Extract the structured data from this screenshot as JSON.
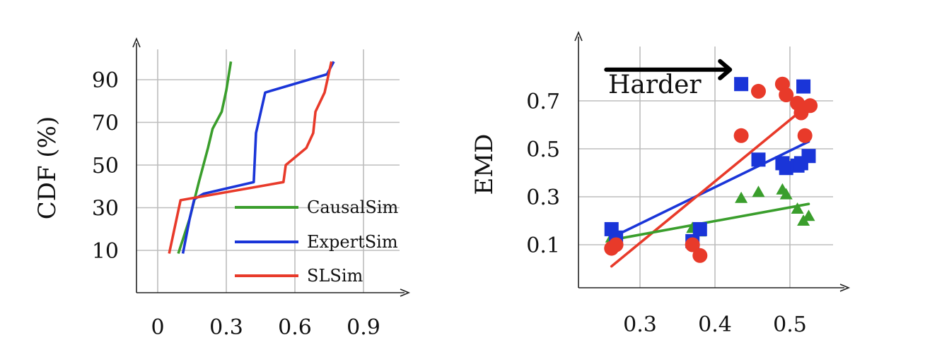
{
  "chart_data": [
    {
      "type": "line",
      "ylabel": "CDF (%)",
      "xlabel": "",
      "xlim": [
        -0.03,
        0.98
      ],
      "ylim": [
        0,
        105
      ],
      "xticks": [
        {
          "v": 0,
          "label": "0"
        },
        {
          "v": 0.3,
          "label": "0.3"
        },
        {
          "v": 0.6,
          "label": "0.6"
        },
        {
          "v": 0.9,
          "label": "0.9"
        }
      ],
      "yticks": [
        {
          "v": 10,
          "label": "10"
        },
        {
          "v": 30,
          "label": "30"
        },
        {
          "v": 50,
          "label": "50"
        },
        {
          "v": 70,
          "label": "70"
        },
        {
          "v": 90,
          "label": "90"
        }
      ],
      "grid": true,
      "legend": "bottom-right",
      "series": [
        {
          "name": "CausalSim",
          "color": "#3a9e2c",
          "points": [
            [
              0.09,
              8.5
            ],
            [
              0.14,
              25
            ],
            [
              0.18,
              42
            ],
            [
              0.22,
              58
            ],
            [
              0.24,
              67
            ],
            [
              0.28,
              75
            ],
            [
              0.3,
              85
            ],
            [
              0.32,
              98.5
            ]
          ]
        },
        {
          "name": "ExpertSim",
          "color": "#1a35d8",
          "points": [
            [
              0.11,
              8.5
            ],
            [
              0.14,
              25
            ],
            [
              0.16,
              34
            ],
            [
              0.2,
              36.5
            ],
            [
              0.42,
              42
            ],
            [
              0.43,
              65
            ],
            [
              0.47,
              84
            ],
            [
              0.74,
              92.5
            ],
            [
              0.77,
              98.5
            ]
          ]
        },
        {
          "name": "SLSim",
          "color": "#e83a2a",
          "points": [
            [
              0.05,
              8.5
            ],
            [
              0.1,
              33.5
            ],
            [
              0.55,
              42
            ],
            [
              0.56,
              50
            ],
            [
              0.65,
              58
            ],
            [
              0.68,
              65
            ],
            [
              0.69,
              75
            ],
            [
              0.73,
              84
            ],
            [
              0.76,
              98.5
            ]
          ]
        }
      ]
    },
    {
      "type": "scatter",
      "ylabel": "EMD",
      "xlabel": "",
      "xlim": [
        0.235,
        0.57
      ],
      "ylim": [
        -0.09,
        0.86
      ],
      "xticks": [
        {
          "v": 0.3,
          "label": "0.3"
        },
        {
          "v": 0.4,
          "label": "0.4"
        },
        {
          "v": 0.5,
          "label": "0.5"
        }
      ],
      "yticks": [
        {
          "v": 0.1,
          "label": "0.1"
        },
        {
          "v": 0.3,
          "label": "0.3"
        },
        {
          "v": 0.5,
          "label": "0.5"
        },
        {
          "v": 0.7,
          "label": "0.7"
        }
      ],
      "grid": true,
      "annotation": {
        "text": "Harder",
        "arrow": "right",
        "from": [
          0.255,
          0.83
        ],
        "to": [
          0.42,
          0.83
        ]
      },
      "series": [
        {
          "name": "ExpertSim",
          "marker": "square",
          "color": "#1a35d8",
          "points": [
            [
              0.262,
              0.165
            ],
            [
              0.268,
              0.13
            ],
            [
              0.37,
              0.115
            ],
            [
              0.38,
              0.165
            ],
            [
              0.435,
              0.77
            ],
            [
              0.458,
              0.455
            ],
            [
              0.49,
              0.44
            ],
            [
              0.495,
              0.42
            ],
            [
              0.51,
              0.43
            ],
            [
              0.515,
              0.44
            ],
            [
              0.518,
              0.76
            ],
            [
              0.525,
              0.47
            ]
          ],
          "trend": [
            [
              0.262,
              0.13
            ],
            [
              0.525,
              0.53
            ]
          ]
        },
        {
          "name": "SLSim",
          "marker": "circle",
          "color": "#e83a2a",
          "points": [
            [
              0.262,
              0.085
            ],
            [
              0.268,
              0.1
            ],
            [
              0.37,
              0.1
            ],
            [
              0.38,
              0.055
            ],
            [
              0.435,
              0.555
            ],
            [
              0.458,
              0.74
            ],
            [
              0.49,
              0.77
            ],
            [
              0.495,
              0.725
            ],
            [
              0.51,
              0.69
            ],
            [
              0.515,
              0.65
            ],
            [
              0.52,
              0.555
            ],
            [
              0.527,
              0.68
            ]
          ],
          "trend": [
            [
              0.262,
              0.01
            ],
            [
              0.527,
              0.69
            ]
          ]
        },
        {
          "name": "CausalSim",
          "marker": "triangle",
          "color": "#3a9e2c",
          "points": [
            [
              0.262,
              0.13
            ],
            [
              0.37,
              0.17
            ],
            [
              0.38,
              0.155
            ],
            [
              0.435,
              0.295
            ],
            [
              0.458,
              0.32
            ],
            [
              0.49,
              0.33
            ],
            [
              0.495,
              0.31
            ],
            [
              0.51,
              0.25
            ],
            [
              0.518,
              0.2
            ],
            [
              0.525,
              0.22
            ]
          ],
          "trend": [
            [
              0.262,
              0.12
            ],
            [
              0.525,
              0.27
            ]
          ]
        }
      ]
    }
  ]
}
